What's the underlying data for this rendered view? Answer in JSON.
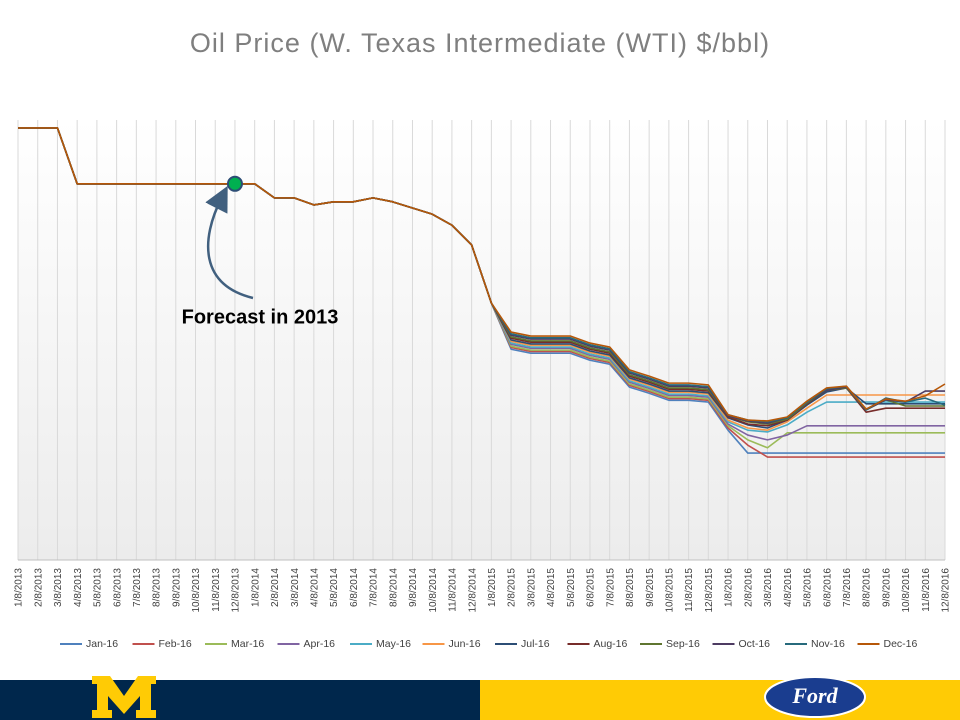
{
  "chart_data": {
    "type": "line",
    "title": "Oil Price (W. Texas Intermediate (WTI) $/bbl)",
    "annotation": {
      "text": "Forecast in 2013",
      "at": "12/8/2013"
    },
    "categories": [
      "1/8/2013",
      "2/8/2013",
      "3/8/2013",
      "4/8/2013",
      "5/8/2013",
      "6/8/2013",
      "7/8/2013",
      "8/8/2013",
      "9/8/2013",
      "10/8/2013",
      "11/8/2013",
      "12/8/2013",
      "1/8/2014",
      "2/8/2014",
      "3/8/2014",
      "4/8/2014",
      "5/8/2014",
      "6/8/2014",
      "7/8/2014",
      "8/8/2014",
      "9/8/2014",
      "10/8/2014",
      "11/8/2014",
      "12/8/2014",
      "1/8/2015",
      "2/8/2015",
      "3/8/2015",
      "4/8/2015",
      "5/8/2015",
      "6/8/2015",
      "7/8/2015",
      "8/8/2015",
      "9/8/2015",
      "10/8/2015",
      "11/8/2015",
      "12/8/2015",
      "1/8/2016",
      "2/8/2016",
      "3/8/2016",
      "4/8/2016",
      "5/8/2016",
      "6/8/2016",
      "7/8/2016",
      "8/8/2016",
      "9/8/2016",
      "10/8/2016",
      "11/8/2016",
      "12/8/2016"
    ],
    "ylim": [
      0,
      100
    ],
    "grid": true,
    "legend": "bottom",
    "series": [
      {
        "name": "Jan-16",
        "color": "#4f81bd",
        "values": [
          98.2,
          98.2,
          98.2,
          85.5,
          85.5,
          85.5,
          85.5,
          85.5,
          85.5,
          85.5,
          85.5,
          85.5,
          85.5,
          82.3,
          82.3,
          80.7,
          81.4,
          81.4,
          82.3,
          81.4,
          80.0,
          78.6,
          76.1,
          71.6,
          58.4,
          47.9,
          47.0,
          47.0,
          47.0,
          45.4,
          44.5,
          39.3,
          37.9,
          36.3,
          36.3,
          35.9,
          29.5,
          24.3,
          24.3,
          24.3,
          24.3,
          24.3,
          24.3,
          24.3,
          24.3,
          24.3,
          24.3,
          24.3
        ]
      },
      {
        "name": "Feb-16",
        "color": "#c0504d",
        "values": [
          98.2,
          98.2,
          98.2,
          85.5,
          85.5,
          85.5,
          85.5,
          85.5,
          85.5,
          85.5,
          85.5,
          85.5,
          85.5,
          82.3,
          82.3,
          80.7,
          81.4,
          81.4,
          82.3,
          81.4,
          80.0,
          78.6,
          76.1,
          71.6,
          58.4,
          48.3,
          47.4,
          47.4,
          47.4,
          45.8,
          44.9,
          39.7,
          38.3,
          36.7,
          36.7,
          36.3,
          30.0,
          26.1,
          23.4,
          23.4,
          23.4,
          23.4,
          23.4,
          23.4,
          23.4,
          23.4,
          23.4,
          23.4
        ]
      },
      {
        "name": "Mar-16",
        "color": "#9bbb59",
        "values": [
          98.2,
          98.2,
          98.2,
          85.5,
          85.5,
          85.5,
          85.5,
          85.5,
          85.5,
          85.5,
          85.5,
          85.5,
          85.5,
          82.3,
          82.3,
          80.7,
          81.4,
          81.4,
          82.3,
          81.4,
          80.0,
          78.6,
          76.1,
          71.6,
          58.4,
          48.6,
          47.7,
          47.7,
          47.7,
          46.1,
          45.2,
          40.0,
          38.6,
          37.0,
          37.0,
          36.6,
          30.5,
          27.3,
          25.5,
          28.9,
          28.9,
          28.9,
          28.9,
          28.9,
          28.9,
          28.9,
          28.9,
          28.9
        ]
      },
      {
        "name": "Apr-16",
        "color": "#8064a2",
        "values": [
          98.2,
          98.2,
          98.2,
          85.5,
          85.5,
          85.5,
          85.5,
          85.5,
          85.5,
          85.5,
          85.5,
          85.5,
          85.5,
          82.3,
          82.3,
          80.7,
          81.4,
          81.4,
          82.3,
          81.4,
          80.0,
          78.6,
          76.1,
          71.6,
          58.4,
          49.0,
          48.1,
          48.1,
          48.1,
          46.5,
          45.6,
          40.4,
          39.0,
          37.4,
          37.4,
          37.0,
          30.9,
          28.4,
          27.3,
          28.4,
          30.5,
          30.5,
          30.5,
          30.5,
          30.5,
          30.5,
          30.5,
          30.5
        ]
      },
      {
        "name": "May-16",
        "color": "#4bacc6",
        "values": [
          98.2,
          98.2,
          98.2,
          85.5,
          85.5,
          85.5,
          85.5,
          85.5,
          85.5,
          85.5,
          85.5,
          85.5,
          85.5,
          82.3,
          82.3,
          80.7,
          81.4,
          81.4,
          82.3,
          81.4,
          80.0,
          78.6,
          76.1,
          71.6,
          58.4,
          49.3,
          48.4,
          48.4,
          48.4,
          46.8,
          45.9,
          40.7,
          39.3,
          37.7,
          37.7,
          37.3,
          31.4,
          29.5,
          29.1,
          30.7,
          33.6,
          35.9,
          35.9,
          35.9,
          35.9,
          35.9,
          35.9,
          35.9
        ]
      },
      {
        "name": "Jun-16",
        "color": "#f79646",
        "values": [
          98.2,
          98.2,
          98.2,
          85.5,
          85.5,
          85.5,
          85.5,
          85.5,
          85.5,
          85.5,
          85.5,
          85.5,
          85.5,
          82.3,
          82.3,
          80.7,
          81.4,
          81.4,
          82.3,
          81.4,
          80.0,
          78.6,
          76.1,
          71.6,
          58.4,
          49.7,
          48.8,
          48.8,
          48.8,
          47.2,
          46.3,
          41.1,
          39.7,
          38.1,
          38.1,
          37.7,
          31.8,
          30.0,
          29.5,
          31.4,
          34.5,
          37.5,
          37.5,
          37.5,
          37.5,
          37.5,
          37.5,
          37.5
        ]
      },
      {
        "name": "Jul-16",
        "color": "#2c4d75",
        "values": [
          98.2,
          98.2,
          98.2,
          85.5,
          85.5,
          85.5,
          85.5,
          85.5,
          85.5,
          85.5,
          85.5,
          85.5,
          85.5,
          82.3,
          82.3,
          80.7,
          81.4,
          81.4,
          82.3,
          81.4,
          80.0,
          78.6,
          76.1,
          71.6,
          58.4,
          50.0,
          49.1,
          49.1,
          49.1,
          47.5,
          46.6,
          41.4,
          40.0,
          38.4,
          38.4,
          38.0,
          32.3,
          30.7,
          30.0,
          31.8,
          35.2,
          38.2,
          39.1,
          35.5,
          35.5,
          35.5,
          35.5,
          35.5
        ]
      },
      {
        "name": "Aug-16",
        "color": "#772c2a",
        "values": [
          98.2,
          98.2,
          98.2,
          85.5,
          85.5,
          85.5,
          85.5,
          85.5,
          85.5,
          85.5,
          85.5,
          85.5,
          85.5,
          82.3,
          82.3,
          80.7,
          81.4,
          81.4,
          82.3,
          81.4,
          80.0,
          78.6,
          76.1,
          71.6,
          58.4,
          50.4,
          49.5,
          49.5,
          49.5,
          47.9,
          47.0,
          41.8,
          40.4,
          38.8,
          38.8,
          38.4,
          32.5,
          30.9,
          30.5,
          31.8,
          35.5,
          38.6,
          39.1,
          33.6,
          34.5,
          34.5,
          34.5,
          34.5
        ]
      },
      {
        "name": "Sep-16",
        "color": "#5f7530",
        "values": [
          98.2,
          98.2,
          98.2,
          85.5,
          85.5,
          85.5,
          85.5,
          85.5,
          85.5,
          85.5,
          85.5,
          85.5,
          85.5,
          82.3,
          82.3,
          80.7,
          81.4,
          81.4,
          82.3,
          81.4,
          80.0,
          78.6,
          76.1,
          71.6,
          58.4,
          50.7,
          49.8,
          49.8,
          49.8,
          48.2,
          47.3,
          42.1,
          40.7,
          39.1,
          39.1,
          38.7,
          32.7,
          31.4,
          30.9,
          32.0,
          35.7,
          38.6,
          39.1,
          34.1,
          36.4,
          35.0,
          35.0,
          35.0
        ]
      },
      {
        "name": "Oct-16",
        "color": "#4d3b62",
        "values": [
          98.2,
          98.2,
          98.2,
          85.5,
          85.5,
          85.5,
          85.5,
          85.5,
          85.5,
          85.5,
          85.5,
          85.5,
          85.5,
          82.3,
          82.3,
          80.7,
          81.4,
          81.4,
          82.3,
          81.4,
          80.0,
          78.6,
          76.1,
          71.6,
          58.4,
          51.1,
          50.2,
          50.2,
          50.2,
          48.6,
          47.7,
          42.5,
          41.1,
          39.5,
          39.5,
          39.1,
          32.7,
          31.6,
          31.1,
          32.3,
          35.9,
          38.6,
          39.3,
          34.1,
          36.4,
          35.9,
          38.4,
          38.4
        ]
      },
      {
        "name": "Nov-16",
        "color": "#276a7c",
        "values": [
          98.2,
          98.2,
          98.2,
          85.5,
          85.5,
          85.5,
          85.5,
          85.5,
          85.5,
          85.5,
          85.5,
          85.5,
          85.5,
          82.3,
          82.3,
          80.7,
          81.4,
          81.4,
          82.3,
          81.4,
          80.0,
          78.6,
          76.1,
          71.6,
          58.4,
          51.4,
          50.5,
          50.5,
          50.5,
          48.9,
          48.0,
          42.8,
          41.4,
          39.8,
          39.8,
          39.4,
          33.0,
          31.8,
          31.4,
          32.3,
          35.9,
          38.9,
          39.5,
          34.1,
          36.8,
          35.9,
          36.8,
          35.2
        ]
      },
      {
        "name": "Dec-16",
        "color": "#b65708",
        "values": [
          98.2,
          98.2,
          98.2,
          85.5,
          85.5,
          85.5,
          85.5,
          85.5,
          85.5,
          85.5,
          85.5,
          85.5,
          85.5,
          82.3,
          82.3,
          80.7,
          81.4,
          81.4,
          82.3,
          81.4,
          80.0,
          78.6,
          76.1,
          71.6,
          58.4,
          51.8,
          50.9,
          50.9,
          50.9,
          49.3,
          48.4,
          43.2,
          41.8,
          40.2,
          40.2,
          39.8,
          33.0,
          31.8,
          31.6,
          32.5,
          36.1,
          39.1,
          39.5,
          34.3,
          36.6,
          36.1,
          37.3,
          40.0
        ]
      }
    ]
  },
  "footer": {
    "logo_text": "Ford"
  }
}
